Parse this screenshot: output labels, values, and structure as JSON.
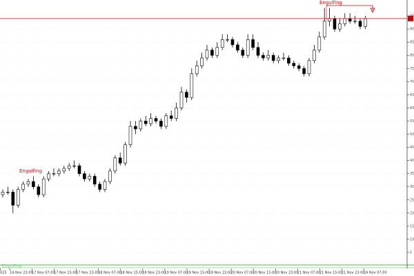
{
  "chart_data": {
    "type": "candlestick",
    "ylim": [
      0,
      100
    ],
    "yticks": [
      5,
      10,
      15,
      20,
      25,
      30,
      35,
      40,
      45,
      50,
      55,
      60,
      65,
      70,
      75,
      80,
      85,
      90,
      95
    ],
    "grid": true,
    "x_labels": [
      "025",
      "14 Nov 23:00",
      "17 Nov 07:00",
      "17 Nov 15:00",
      "17 Nov 23:00",
      "18 Nov 07:00",
      "18 Nov 15:00",
      "18 Nov 23:00",
      "19 Nov 07:00",
      "19 Nov 15:00",
      "19 Nov 23:00",
      "20 Nov 07:00",
      "20 Nov 15:00",
      "20 Nov 23:00",
      "21 Nov 07:00",
      "21 Nov 15:00",
      "21 Nov 23:00",
      "24 Nov 07:00"
    ],
    "open": [
      27,
      28,
      28,
      23,
      29,
      31,
      32,
      30,
      27,
      33,
      35,
      35,
      36,
      37,
      38,
      38,
      35,
      33,
      34,
      31,
      29,
      32,
      36,
      41,
      39,
      46,
      53,
      52,
      55,
      54,
      56,
      55,
      53,
      57,
      56,
      60,
      66,
      64,
      73,
      76,
      79,
      82,
      80,
      83,
      86,
      86,
      84,
      82,
      80,
      86,
      83,
      80,
      79,
      80,
      78,
      79,
      79,
      77,
      76,
      75,
      73,
      78,
      82,
      87,
      93,
      94,
      90,
      92,
      94,
      93,
      93,
      91
    ],
    "high": [
      29,
      30,
      29,
      30,
      32,
      33,
      34,
      31,
      34,
      36,
      37,
      37,
      38,
      39,
      40,
      39,
      36,
      35,
      35,
      32,
      33,
      37,
      42,
      43,
      47,
      55,
      55,
      56,
      57,
      58,
      57,
      56,
      58,
      59,
      62,
      68,
      67,
      75,
      78,
      81,
      84,
      83,
      85,
      88,
      88,
      87,
      85,
      83,
      88,
      88,
      85,
      81,
      82,
      81,
      80,
      81,
      80,
      78,
      77,
      76,
      79,
      84,
      89,
      98,
      98,
      95,
      94,
      96,
      96,
      95,
      94,
      95
    ],
    "low": [
      26,
      27,
      20,
      22,
      28,
      30,
      29,
      26,
      26,
      32,
      34,
      34,
      35,
      36,
      37,
      34,
      32,
      32,
      30,
      28,
      28,
      31,
      35,
      38,
      38,
      45,
      50,
      51,
      53,
      53,
      54,
      52,
      52,
      55,
      55,
      59,
      62,
      63,
      72,
      75,
      78,
      79,
      79,
      82,
      85,
      83,
      81,
      79,
      79,
      82,
      79,
      78,
      78,
      77,
      77,
      78,
      76,
      75,
      74,
      72,
      72,
      77,
      81,
      86,
      91,
      89,
      89,
      91,
      92,
      92,
      90,
      90
    ],
    "close": [
      28,
      28,
      23,
      29,
      31,
      32,
      30,
      27,
      33,
      35,
      35,
      36,
      37,
      38,
      38,
      35,
      33,
      34,
      31,
      29,
      32,
      36,
      41,
      39,
      46,
      53,
      52,
      55,
      54,
      56,
      55,
      53,
      57,
      56,
      60,
      66,
      64,
      73,
      76,
      79,
      82,
      80,
      83,
      86,
      86,
      84,
      82,
      80,
      86,
      83,
      80,
      79,
      80,
      78,
      79,
      79,
      77,
      76,
      75,
      73,
      78,
      82,
      87,
      93,
      94,
      90,
      92,
      94,
      93,
      93,
      91,
      94
    ],
    "up_color": "#ffffff",
    "down_color": "#000000",
    "outline_color": "#000000",
    "price_line": {
      "value": 94,
      "color": "#cc0000"
    },
    "annotations": [
      {
        "text": "Engulfing",
        "color": "#dd0000"
      },
      {
        "text": "Engulfing",
        "color": "#dd0000"
      },
      {
        "text": "Engulfing",
        "color": "#33aa33"
      }
    ]
  }
}
